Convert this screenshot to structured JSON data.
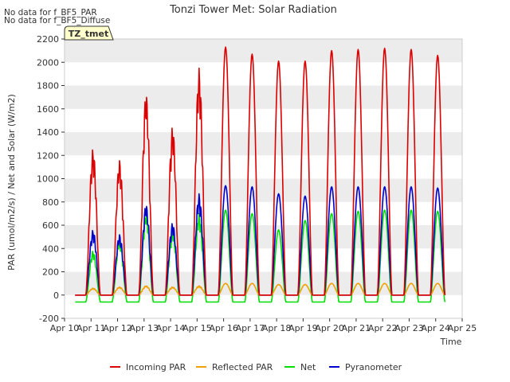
{
  "chart_data": {
    "type": "line",
    "title": "Tonzi Tower Met: Solar Radiation",
    "xlabel": "Time",
    "ylabel": "PAR (umol/m2/s) / Net and Solar (W/m2)",
    "ylim": [
      -200,
      2200
    ],
    "xlim": [
      10,
      25
    ],
    "yticks": [
      -200,
      0,
      200,
      400,
      600,
      800,
      1000,
      1200,
      1400,
      1600,
      1800,
      2000,
      2200
    ],
    "xticks": [
      10,
      11,
      12,
      13,
      14,
      15,
      16,
      17,
      18,
      19,
      20,
      21,
      22,
      23,
      24,
      25
    ],
    "xtick_labels": [
      "Apr 10",
      "Apr 11",
      "Apr 12",
      "Apr 13",
      "Apr 14",
      "Apr 15",
      "Apr 16",
      "Apr 17",
      "Apr 18",
      "Apr 19",
      "Apr 20",
      "Apr 21",
      "Apr 22",
      "Apr 23",
      "Apr 24",
      "Apr 25"
    ],
    "grid": "horizontal bands",
    "annotations": [
      "No data for f_BF5_PAR",
      "No data for f_BF5_Diffuse"
    ],
    "badge": "TZ_tmet",
    "legend_position": "bottom-center",
    "series": [
      {
        "name": "Incoming PAR",
        "color": "#dd0000",
        "daily_peaks": [
          1260,
          1160,
          1740,
          1450,
          1950,
          2130,
          2070,
          2010,
          2010,
          2100,
          2110,
          2120,
          2110,
          2060
        ]
      },
      {
        "name": "Reflected PAR",
        "color": "#f0a000",
        "daily_peaks": [
          60,
          70,
          80,
          70,
          80,
          100,
          100,
          90,
          90,
          100,
          100,
          100,
          100,
          100
        ]
      },
      {
        "name": "Net",
        "color": "#00dd00",
        "daily_peaks": [
          380,
          480,
          700,
          560,
          700,
          730,
          700,
          560,
          640,
          700,
          720,
          730,
          730,
          720
        ],
        "night_value": -60
      },
      {
        "name": "Pyranometer",
        "color": "#0000cc",
        "daily_peaks": [
          560,
          520,
          780,
          620,
          870,
          940,
          930,
          870,
          850,
          930,
          930,
          930,
          930,
          920
        ]
      }
    ],
    "day_starts": [
      10.8,
      11.8,
      12.8,
      13.8,
      14.8,
      15.8,
      16.8,
      17.8,
      18.8,
      19.8,
      20.8,
      21.8,
      22.8,
      23.8
    ]
  }
}
